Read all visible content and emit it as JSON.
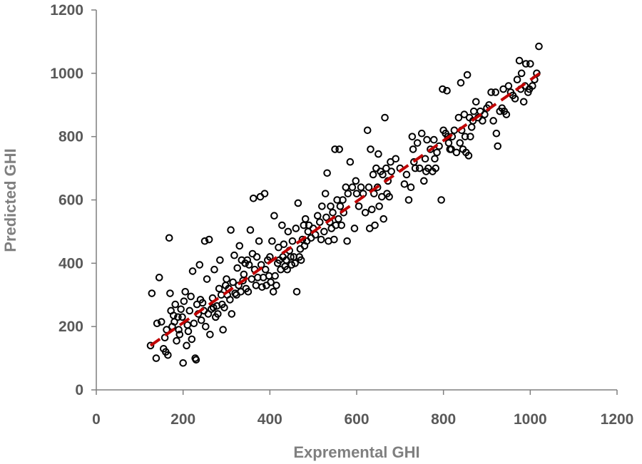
{
  "chart_data": {
    "type": "scatter",
    "title": "",
    "xlabel": "Expremental  GHI",
    "ylabel": "Predicted  GHI",
    "xlim": [
      0,
      1200
    ],
    "ylim": [
      0,
      1200
    ],
    "xticks": [
      0,
      200,
      400,
      600,
      800,
      1000,
      1200
    ],
    "yticks": [
      0,
      200,
      400,
      600,
      800,
      1000,
      1200
    ],
    "grid": false,
    "legend": "none",
    "colors": {
      "points": "#000000",
      "fit_line": "#c00000",
      "axis": "#7f7f7f"
    },
    "fit_line": {
      "style": "dashed",
      "x": [
        125,
        1025
      ],
      "y": [
        140,
        1003
      ]
    },
    "series": [
      {
        "points": [
          [
            125,
            140
          ],
          [
            128,
            305
          ],
          [
            138,
            100
          ],
          [
            140,
            210
          ],
          [
            145,
            355
          ],
          [
            150,
            215
          ],
          [
            155,
            130
          ],
          [
            158,
            165
          ],
          [
            160,
            120
          ],
          [
            162,
            190
          ],
          [
            165,
            110
          ],
          [
            168,
            480
          ],
          [
            170,
            305
          ],
          [
            172,
            250
          ],
          [
            175,
            200
          ],
          [
            178,
            235
          ],
          [
            180,
            215
          ],
          [
            182,
            270
          ],
          [
            185,
            155
          ],
          [
            188,
            230
          ],
          [
            190,
            190
          ],
          [
            192,
            175
          ],
          [
            195,
            255
          ],
          [
            198,
            230
          ],
          [
            200,
            85
          ],
          [
            202,
            280
          ],
          [
            205,
            310
          ],
          [
            208,
            140
          ],
          [
            210,
            205
          ],
          [
            212,
            185
          ],
          [
            215,
            250
          ],
          [
            218,
            295
          ],
          [
            220,
            160
          ],
          [
            222,
            375
          ],
          [
            225,
            210
          ],
          [
            228,
            100
          ],
          [
            230,
            95
          ],
          [
            232,
            270
          ],
          [
            235,
            240
          ],
          [
            238,
            395
          ],
          [
            240,
            285
          ],
          [
            242,
            220
          ],
          [
            245,
            275
          ],
          [
            248,
            250
          ],
          [
            250,
            470
          ],
          [
            252,
            200
          ],
          [
            255,
            350
          ],
          [
            258,
            240
          ],
          [
            260,
            475
          ],
          [
            262,
            175
          ],
          [
            265,
            255
          ],
          [
            268,
            290
          ],
          [
            270,
            260
          ],
          [
            272,
            380
          ],
          [
            275,
            230
          ],
          [
            278,
            265
          ],
          [
            280,
            240
          ],
          [
            283,
            320
          ],
          [
            285,
            410
          ],
          [
            288,
            300
          ],
          [
            290,
            270
          ],
          [
            292,
            190
          ],
          [
            295,
            260
          ],
          [
            298,
            330
          ],
          [
            300,
            350
          ],
          [
            302,
            300
          ],
          [
            305,
            320
          ],
          [
            308,
            285
          ],
          [
            310,
            505
          ],
          [
            312,
            240
          ],
          [
            315,
            340
          ],
          [
            318,
            425
          ],
          [
            320,
            305
          ],
          [
            323,
            300
          ],
          [
            325,
            385
          ],
          [
            328,
            330
          ],
          [
            330,
            455
          ],
          [
            333,
            310
          ],
          [
            335,
            410
          ],
          [
            338,
            345
          ],
          [
            340,
            365
          ],
          [
            343,
            400
          ],
          [
            345,
            320
          ],
          [
            348,
            410
          ],
          [
            350,
            310
          ],
          [
            352,
            395
          ],
          [
            355,
            505
          ],
          [
            358,
            350
          ],
          [
            360,
            430
          ],
          [
            362,
            605
          ],
          [
            365,
            380
          ],
          [
            368,
            330
          ],
          [
            370,
            420
          ],
          [
            372,
            355
          ],
          [
            375,
            470
          ],
          [
            378,
            610
          ],
          [
            380,
            395
          ],
          [
            382,
            325
          ],
          [
            385,
            355
          ],
          [
            388,
            620
          ],
          [
            390,
            380
          ],
          [
            392,
            330
          ],
          [
            395,
            410
          ],
          [
            398,
            360
          ],
          [
            400,
            420
          ],
          [
            402,
            340
          ],
          [
            405,
            470
          ],
          [
            408,
            310
          ],
          [
            410,
            550
          ],
          [
            412,
            360
          ],
          [
            415,
            330
          ],
          [
            418,
            400
          ],
          [
            420,
            450
          ],
          [
            422,
            410
          ],
          [
            425,
            380
          ],
          [
            428,
            520
          ],
          [
            430,
            420
          ],
          [
            432,
            460
          ],
          [
            435,
            390
          ],
          [
            438,
            410
          ],
          [
            440,
            380
          ],
          [
            442,
            500
          ],
          [
            445,
            440
          ],
          [
            448,
            420
          ],
          [
            450,
            395
          ],
          [
            452,
            470
          ],
          [
            455,
            420
          ],
          [
            458,
            400
          ],
          [
            460,
            510
          ],
          [
            462,
            310
          ],
          [
            465,
            590
          ],
          [
            468,
            420
          ],
          [
            470,
            445
          ],
          [
            472,
            410
          ],
          [
            475,
            475
          ],
          [
            478,
            520
          ],
          [
            480,
            455
          ],
          [
            482,
            540
          ],
          [
            485,
            470
          ],
          [
            488,
            500
          ],
          [
            490,
            520
          ],
          [
            495,
            480
          ],
          [
            500,
            510
          ],
          [
            505,
            490
          ],
          [
            510,
            550
          ],
          [
            515,
            530
          ],
          [
            518,
            475
          ],
          [
            520,
            580
          ],
          [
            525,
            500
          ],
          [
            528,
            620
          ],
          [
            530,
            545
          ],
          [
            532,
            685
          ],
          [
            535,
            470
          ],
          [
            538,
            530
          ],
          [
            540,
            580
          ],
          [
            542,
            510
          ],
          [
            545,
            560
          ],
          [
            548,
            475
          ],
          [
            550,
            760
          ],
          [
            552,
            520
          ],
          [
            555,
            600
          ],
          [
            558,
            540
          ],
          [
            560,
            760
          ],
          [
            562,
            580
          ],
          [
            565,
            520
          ],
          [
            568,
            600
          ],
          [
            570,
            560
          ],
          [
            575,
            640
          ],
          [
            578,
            470
          ],
          [
            580,
            620
          ],
          [
            585,
            720
          ],
          [
            590,
            640
          ],
          [
            595,
            510
          ],
          [
            598,
            660
          ],
          [
            600,
            620
          ],
          [
            605,
            580
          ],
          [
            610,
            640
          ],
          [
            615,
            620
          ],
          [
            620,
            560
          ],
          [
            625,
            820
          ],
          [
            628,
            640
          ],
          [
            630,
            510
          ],
          [
            632,
            760
          ],
          [
            635,
            570
          ],
          [
            638,
            680
          ],
          [
            640,
            620
          ],
          [
            642,
            520
          ],
          [
            645,
            700
          ],
          [
            648,
            640
          ],
          [
            650,
            745
          ],
          [
            652,
            580
          ],
          [
            655,
            690
          ],
          [
            658,
            610
          ],
          [
            660,
            680
          ],
          [
            662,
            540
          ],
          [
            665,
            860
          ],
          [
            668,
            700
          ],
          [
            670,
            620
          ],
          [
            672,
            660
          ],
          [
            675,
            610
          ],
          [
            678,
            720
          ],
          [
            680,
            690
          ],
          [
            690,
            730
          ],
          [
            700,
            700
          ],
          [
            710,
            650
          ],
          [
            715,
            680
          ],
          [
            720,
            600
          ],
          [
            725,
            640
          ],
          [
            728,
            800
          ],
          [
            730,
            760
          ],
          [
            732,
            720
          ],
          [
            735,
            700
          ],
          [
            740,
            780
          ],
          [
            745,
            700
          ],
          [
            750,
            810
          ],
          [
            755,
            660
          ],
          [
            758,
            730
          ],
          [
            760,
            690
          ],
          [
            762,
            790
          ],
          [
            765,
            700
          ],
          [
            770,
            760
          ],
          [
            775,
            690
          ],
          [
            778,
            790
          ],
          [
            780,
            730
          ],
          [
            782,
            700
          ],
          [
            785,
            750
          ],
          [
            790,
            770
          ],
          [
            795,
            600
          ],
          [
            798,
            950
          ],
          [
            800,
            820
          ],
          [
            805,
            810
          ],
          [
            808,
            945
          ],
          [
            810,
            800
          ],
          [
            812,
            780
          ],
          [
            815,
            760
          ],
          [
            818,
            760
          ],
          [
            820,
            800
          ],
          [
            825,
            820
          ],
          [
            830,
            750
          ],
          [
            835,
            860
          ],
          [
            838,
            780
          ],
          [
            840,
            970
          ],
          [
            842,
            820
          ],
          [
            845,
            760
          ],
          [
            848,
            870
          ],
          [
            850,
            800
          ],
          [
            852,
            750
          ],
          [
            855,
            995
          ],
          [
            858,
            740
          ],
          [
            860,
            860
          ],
          [
            862,
            800
          ],
          [
            865,
            830
          ],
          [
            868,
            850
          ],
          [
            870,
            880
          ],
          [
            875,
            910
          ],
          [
            880,
            860
          ],
          [
            885,
            880
          ],
          [
            890,
            850
          ],
          [
            895,
            870
          ],
          [
            900,
            890
          ],
          [
            905,
            900
          ],
          [
            910,
            940
          ],
          [
            915,
            850
          ],
          [
            920,
            940
          ],
          [
            922,
            810
          ],
          [
            925,
            770
          ],
          [
            930,
            880
          ],
          [
            935,
            890
          ],
          [
            938,
            950
          ],
          [
            940,
            880
          ],
          [
            945,
            870
          ],
          [
            950,
            960
          ],
          [
            955,
            940
          ],
          [
            960,
            930
          ],
          [
            965,
            920
          ],
          [
            970,
            980
          ],
          [
            975,
            1040
          ],
          [
            978,
            950
          ],
          [
            980,
            1000
          ],
          [
            985,
            910
          ],
          [
            988,
            960
          ],
          [
            990,
            1030
          ],
          [
            995,
            940
          ],
          [
            998,
            950
          ],
          [
            1000,
            1030
          ],
          [
            1005,
            960
          ],
          [
            1010,
            980
          ],
          [
            1015,
            1000
          ],
          [
            1020,
            1085
          ]
        ]
      }
    ]
  }
}
